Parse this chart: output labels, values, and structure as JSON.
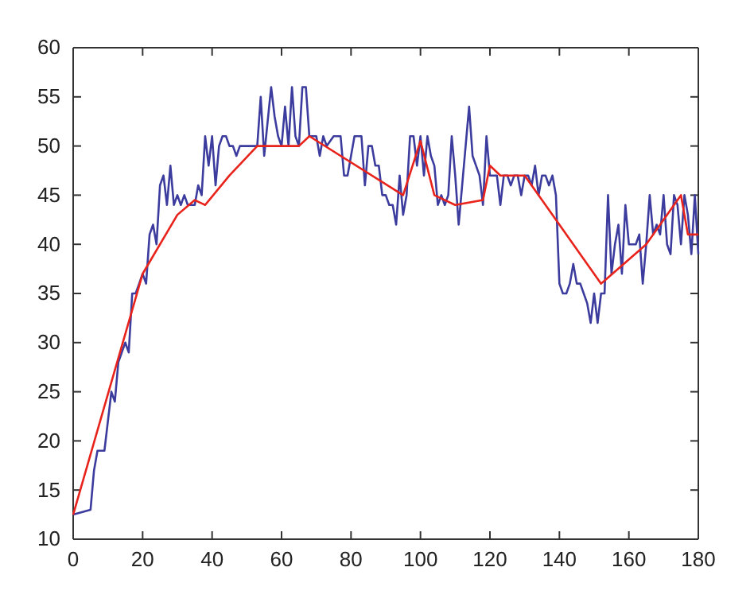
{
  "chart_data": {
    "type": "line",
    "xlim": [
      0,
      180
    ],
    "ylim": [
      10,
      60
    ],
    "xticks": [
      0,
      20,
      40,
      60,
      80,
      100,
      120,
      140,
      160,
      180
    ],
    "yticks": [
      10,
      15,
      20,
      25,
      30,
      35,
      40,
      45,
      50,
      55,
      60
    ],
    "marker": "none",
    "line_style": "solid",
    "series": [
      {
        "color": "#3c3c9e",
        "x": [
          0,
          5,
          6,
          7,
          9,
          10,
          11,
          12,
          13,
          14,
          15,
          16,
          17,
          18,
          19,
          20,
          21,
          22,
          23,
          24,
          25,
          26,
          27,
          28,
          29,
          30,
          31,
          32,
          33,
          34,
          35,
          36,
          37,
          38,
          39,
          40,
          41,
          42,
          43,
          44,
          45,
          46,
          47,
          48,
          50,
          53,
          54,
          55,
          57,
          58,
          59,
          60,
          61,
          62,
          63,
          64,
          65,
          66,
          67,
          68,
          70,
          71,
          72,
          73,
          75,
          77,
          78,
          79,
          80,
          81,
          83,
          84,
          85,
          86,
          87,
          88,
          89,
          90,
          91,
          92,
          93,
          94,
          95,
          96,
          97,
          98,
          99,
          100,
          101,
          102,
          103,
          104,
          105,
          106,
          107,
          108,
          109,
          110,
          111,
          112,
          113,
          114,
          115,
          116,
          117,
          118,
          119,
          120,
          121,
          122,
          123,
          124,
          125,
          126,
          127,
          128,
          129,
          130,
          131,
          132,
          133,
          134,
          135,
          136,
          137,
          138,
          139,
          140,
          141,
          142,
          143,
          144,
          145,
          146,
          147,
          148,
          149,
          150,
          151,
          152,
          153,
          154,
          155,
          156,
          157,
          158,
          159,
          160,
          161,
          162,
          163,
          164,
          165,
          166,
          167,
          168,
          169,
          170,
          171,
          172,
          173,
          174,
          175,
          176,
          177,
          178,
          179,
          180
        ],
        "values": [
          12.5,
          13,
          17,
          19,
          19,
          22,
          25,
          24,
          28,
          29,
          30,
          29,
          35,
          35,
          36,
          37,
          36,
          41,
          42,
          40,
          46,
          47,
          44,
          48,
          44,
          45,
          44,
          45,
          44,
          44,
          44,
          46,
          45,
          51,
          48,
          51,
          46,
          50,
          51,
          51,
          50,
          50,
          49,
          50,
          50,
          50,
          55,
          49,
          56,
          53,
          51,
          50,
          54,
          50,
          56,
          51,
          50,
          56,
          56,
          51,
          51,
          49,
          51,
          50,
          51,
          51,
          47,
          47,
          49,
          51,
          51,
          46,
          50,
          50,
          48,
          48,
          45,
          45,
          44,
          44,
          42,
          47,
          43,
          45,
          51,
          51,
          48,
          51,
          47,
          51,
          49,
          48,
          44,
          45,
          44,
          45,
          51,
          47,
          42,
          46,
          50,
          54,
          49,
          48,
          47,
          44,
          51,
          47,
          47,
          47,
          44,
          47,
          47,
          46,
          47,
          47,
          45,
          47,
          47,
          46,
          48,
          45,
          47,
          47,
          46,
          47,
          45,
          36,
          35,
          35,
          36,
          38,
          36,
          36,
          35,
          34,
          32,
          35,
          32,
          35,
          35,
          45,
          37,
          40,
          42,
          37,
          44,
          40,
          40,
          40,
          41,
          36,
          40,
          45,
          41,
          42,
          41,
          45,
          40,
          39,
          45,
          44,
          40,
          45,
          43,
          39,
          45,
          39
        ]
      },
      {
        "color": "#e8231b",
        "x": [
          0,
          20,
          30,
          35,
          38,
          45,
          53,
          65,
          68,
          95,
          100,
          104,
          110,
          118,
          120,
          123,
          130,
          152,
          165,
          175,
          177,
          180
        ],
        "values": [
          12.5,
          37,
          43,
          44.5,
          44,
          47,
          50,
          50,
          51,
          45,
          50.5,
          45,
          44,
          44.5,
          48,
          47,
          47,
          36,
          40,
          45,
          41,
          41
        ]
      }
    ]
  }
}
